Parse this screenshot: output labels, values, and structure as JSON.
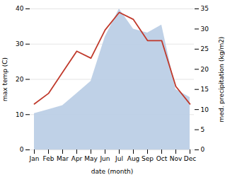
{
  "chart_data": {
    "type": "line",
    "categories": [
      "Jan",
      "Feb",
      "Mar",
      "Apr",
      "May",
      "Jun",
      "Jul",
      "Aug",
      "Sep",
      "Oct",
      "Nov",
      "Dec"
    ],
    "series": [
      {
        "type": "area",
        "axis": "y2",
        "color": "#b8cce4",
        "values": [
          9,
          10,
          11,
          14,
          17,
          28,
          35,
          30,
          29,
          31,
          15,
          13
        ]
      },
      {
        "type": "line",
        "color": "#c0392b",
        "values": [
          13,
          16,
          22,
          28,
          26,
          34,
          39,
          37,
          31,
          31,
          18,
          13
        ]
      }
    ],
    "xlabel": "date (month)",
    "ylabel": "max temp (C)",
    "y2label": "med. precipitation (kg/m2)",
    "ylim": [
      0,
      40
    ],
    "yticks": [
      0,
      10,
      20,
      30,
      40
    ],
    "y2lim": [
      0,
      35
    ],
    "y2ticks": [
      0,
      5,
      10,
      15,
      20,
      25,
      30,
      35
    ],
    "grid": true
  }
}
